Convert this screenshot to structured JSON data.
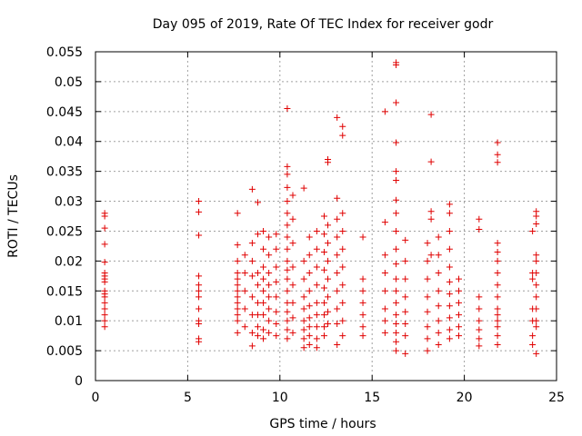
{
  "chart_data": {
    "type": "scatter",
    "title": "Day 095 of 2019, Rate Of TEC Index for receiver godr",
    "xlabel": "GPS time / hours",
    "ylabel": "ROTI / TECUs",
    "xlim": [
      0,
      25
    ],
    "ylim": [
      0,
      0.055
    ],
    "x_ticks": [
      0,
      5,
      10,
      15,
      20,
      25
    ],
    "x_tick_labels": [
      "0",
      "5",
      "10",
      "15",
      "20",
      "25"
    ],
    "y_ticks": [
      0,
      0.005,
      0.01,
      0.015,
      0.02,
      0.025,
      0.03,
      0.035,
      0.04,
      0.045,
      0.05,
      0.055
    ],
    "y_tick_labels": [
      "0",
      "0.005",
      "0.01",
      "0.015",
      "0.02",
      "0.025",
      "0.03",
      "0.035",
      "0.04",
      "0.045",
      "0.05",
      "0.055"
    ],
    "grid": true,
    "marker": "plus",
    "marker_color": "#e00000",
    "series": [
      {
        "name": "ROTI",
        "points": [
          [
            0.5,
            0.028
          ],
          [
            0.5,
            0.0275
          ],
          [
            0.5,
            0.0255
          ],
          [
            0.5,
            0.0228
          ],
          [
            0.5,
            0.0198
          ],
          [
            0.5,
            0.018
          ],
          [
            0.5,
            0.0175
          ],
          [
            0.5,
            0.017
          ],
          [
            0.5,
            0.0165
          ],
          [
            0.5,
            0.015
          ],
          [
            0.5,
            0.0145
          ],
          [
            0.5,
            0.014
          ],
          [
            0.5,
            0.013
          ],
          [
            0.5,
            0.012
          ],
          [
            0.5,
            0.011
          ],
          [
            0.5,
            0.01
          ],
          [
            0.5,
            0.009
          ],
          [
            5.6,
            0.03
          ],
          [
            5.6,
            0.0282
          ],
          [
            5.6,
            0.0243
          ],
          [
            5.6,
            0.0175
          ],
          [
            5.6,
            0.016
          ],
          [
            5.6,
            0.015
          ],
          [
            5.6,
            0.014
          ],
          [
            5.6,
            0.012
          ],
          [
            5.6,
            0.01
          ],
          [
            5.6,
            0.0095
          ],
          [
            5.6,
            0.007
          ],
          [
            5.6,
            0.0065
          ],
          [
            7.7,
            0.028
          ],
          [
            7.7,
            0.0227
          ],
          [
            7.7,
            0.02
          ],
          [
            7.7,
            0.018
          ],
          [
            7.7,
            0.017
          ],
          [
            7.7,
            0.016
          ],
          [
            7.7,
            0.015
          ],
          [
            7.7,
            0.014
          ],
          [
            7.7,
            0.013
          ],
          [
            7.7,
            0.012
          ],
          [
            7.7,
            0.011
          ],
          [
            7.7,
            0.01
          ],
          [
            7.7,
            0.008
          ],
          [
            8.1,
            0.021
          ],
          [
            8.1,
            0.018
          ],
          [
            8.1,
            0.015
          ],
          [
            8.1,
            0.012
          ],
          [
            8.1,
            0.009
          ],
          [
            8.5,
            0.032
          ],
          [
            8.5,
            0.023
          ],
          [
            8.5,
            0.02
          ],
          [
            8.5,
            0.0175
          ],
          [
            8.5,
            0.014
          ],
          [
            8.5,
            0.011
          ],
          [
            8.5,
            0.008
          ],
          [
            8.5,
            0.0058
          ],
          [
            8.8,
            0.0298
          ],
          [
            8.8,
            0.0245
          ],
          [
            8.8,
            0.018
          ],
          [
            8.8,
            0.016
          ],
          [
            8.8,
            0.013
          ],
          [
            8.8,
            0.011
          ],
          [
            8.8,
            0.009
          ],
          [
            8.8,
            0.0075
          ],
          [
            9.1,
            0.025
          ],
          [
            9.1,
            0.022
          ],
          [
            9.1,
            0.019
          ],
          [
            9.1,
            0.017
          ],
          [
            9.1,
            0.015
          ],
          [
            9.1,
            0.013
          ],
          [
            9.1,
            0.011
          ],
          [
            9.1,
            0.0085
          ],
          [
            9.1,
            0.007
          ],
          [
            9.4,
            0.024
          ],
          [
            9.4,
            0.021
          ],
          [
            9.4,
            0.018
          ],
          [
            9.4,
            0.016
          ],
          [
            9.4,
            0.014
          ],
          [
            9.4,
            0.012
          ],
          [
            9.4,
            0.01
          ],
          [
            9.4,
            0.008
          ],
          [
            9.8,
            0.0245
          ],
          [
            9.8,
            0.022
          ],
          [
            9.8,
            0.019
          ],
          [
            9.8,
            0.0165
          ],
          [
            9.8,
            0.014
          ],
          [
            9.8,
            0.0115
          ],
          [
            9.8,
            0.0095
          ],
          [
            9.8,
            0.0075
          ],
          [
            10.4,
            0.0455
          ],
          [
            10.4,
            0.0358
          ],
          [
            10.4,
            0.0345
          ],
          [
            10.4,
            0.0323
          ],
          [
            10.4,
            0.03
          ],
          [
            10.4,
            0.028
          ],
          [
            10.4,
            0.026
          ],
          [
            10.4,
            0.024
          ],
          [
            10.4,
            0.022
          ],
          [
            10.4,
            0.02
          ],
          [
            10.4,
            0.0185
          ],
          [
            10.4,
            0.017
          ],
          [
            10.4,
            0.015
          ],
          [
            10.4,
            0.013
          ],
          [
            10.4,
            0.0115
          ],
          [
            10.4,
            0.01
          ],
          [
            10.4,
            0.0085
          ],
          [
            10.4,
            0.007
          ],
          [
            10.7,
            0.031
          ],
          [
            10.7,
            0.027
          ],
          [
            10.7,
            0.023
          ],
          [
            10.7,
            0.019
          ],
          [
            10.7,
            0.016
          ],
          [
            10.7,
            0.013
          ],
          [
            10.7,
            0.0105
          ],
          [
            10.7,
            0.008
          ],
          [
            11.3,
            0.0322
          ],
          [
            11.3,
            0.02
          ],
          [
            11.3,
            0.017
          ],
          [
            11.3,
            0.014
          ],
          [
            11.3,
            0.012
          ],
          [
            11.3,
            0.01
          ],
          [
            11.3,
            0.0085
          ],
          [
            11.3,
            0.007
          ],
          [
            11.3,
            0.0055
          ],
          [
            11.6,
            0.024
          ],
          [
            11.6,
            0.021
          ],
          [
            11.6,
            0.018
          ],
          [
            11.6,
            0.015
          ],
          [
            11.6,
            0.0125
          ],
          [
            11.6,
            0.0105
          ],
          [
            11.6,
            0.009
          ],
          [
            11.6,
            0.0075
          ],
          [
            11.6,
            0.006
          ],
          [
            12.0,
            0.025
          ],
          [
            12.0,
            0.022
          ],
          [
            12.0,
            0.019
          ],
          [
            12.0,
            0.016
          ],
          [
            12.0,
            0.013
          ],
          [
            12.0,
            0.011
          ],
          [
            12.0,
            0.009
          ],
          [
            12.0,
            0.007
          ],
          [
            12.0,
            0.0055
          ],
          [
            12.4,
            0.0275
          ],
          [
            12.4,
            0.0245
          ],
          [
            12.4,
            0.0215
          ],
          [
            12.4,
            0.0185
          ],
          [
            12.4,
            0.0155
          ],
          [
            12.4,
            0.013
          ],
          [
            12.4,
            0.011
          ],
          [
            12.4,
            0.009
          ],
          [
            12.4,
            0.0075
          ],
          [
            12.6,
            0.037
          ],
          [
            12.6,
            0.0365
          ],
          [
            12.6,
            0.026
          ],
          [
            12.6,
            0.023
          ],
          [
            12.6,
            0.02
          ],
          [
            12.6,
            0.017
          ],
          [
            12.6,
            0.014
          ],
          [
            12.6,
            0.0115
          ],
          [
            12.6,
            0.0095
          ],
          [
            13.1,
            0.044
          ],
          [
            13.1,
            0.0305
          ],
          [
            13.1,
            0.027
          ],
          [
            13.1,
            0.024
          ],
          [
            13.1,
            0.021
          ],
          [
            13.1,
            0.018
          ],
          [
            13.1,
            0.015
          ],
          [
            13.1,
            0.012
          ],
          [
            13.1,
            0.0095
          ],
          [
            13.1,
            0.006
          ],
          [
            13.4,
            0.0425
          ],
          [
            13.4,
            0.041
          ],
          [
            13.4,
            0.028
          ],
          [
            13.4,
            0.025
          ],
          [
            13.4,
            0.022
          ],
          [
            13.4,
            0.019
          ],
          [
            13.4,
            0.016
          ],
          [
            13.4,
            0.013
          ],
          [
            13.4,
            0.01
          ],
          [
            13.4,
            0.0075
          ],
          [
            14.5,
            0.024
          ],
          [
            14.5,
            0.017
          ],
          [
            14.5,
            0.015
          ],
          [
            14.5,
            0.013
          ],
          [
            14.5,
            0.011
          ],
          [
            14.5,
            0.009
          ],
          [
            14.5,
            0.0075
          ],
          [
            15.7,
            0.045
          ],
          [
            15.7,
            0.0265
          ],
          [
            15.7,
            0.021
          ],
          [
            15.7,
            0.018
          ],
          [
            15.7,
            0.015
          ],
          [
            15.7,
            0.012
          ],
          [
            15.7,
            0.01
          ],
          [
            15.7,
            0.008
          ],
          [
            16.3,
            0.0532
          ],
          [
            16.3,
            0.0528
          ],
          [
            16.3,
            0.0465
          ],
          [
            16.3,
            0.0398
          ],
          [
            16.3,
            0.035
          ],
          [
            16.3,
            0.0335
          ],
          [
            16.3,
            0.0302
          ],
          [
            16.3,
            0.028
          ],
          [
            16.3,
            0.025
          ],
          [
            16.3,
            0.022
          ],
          [
            16.3,
            0.0195
          ],
          [
            16.3,
            0.017
          ],
          [
            16.3,
            0.015
          ],
          [
            16.3,
            0.013
          ],
          [
            16.3,
            0.011
          ],
          [
            16.3,
            0.0095
          ],
          [
            16.3,
            0.008
          ],
          [
            16.3,
            0.0065
          ],
          [
            16.3,
            0.005
          ],
          [
            16.8,
            0.0235
          ],
          [
            16.8,
            0.02
          ],
          [
            16.8,
            0.017
          ],
          [
            16.8,
            0.014
          ],
          [
            16.8,
            0.0115
          ],
          [
            16.8,
            0.0095
          ],
          [
            16.8,
            0.0075
          ],
          [
            16.8,
            0.0045
          ],
          [
            18.0,
            0.023
          ],
          [
            18.0,
            0.02
          ],
          [
            18.0,
            0.017
          ],
          [
            18.0,
            0.014
          ],
          [
            18.0,
            0.0115
          ],
          [
            18.0,
            0.009
          ],
          [
            18.0,
            0.007
          ],
          [
            18.0,
            0.005
          ],
          [
            18.2,
            0.0445
          ],
          [
            18.2,
            0.0366
          ],
          [
            18.2,
            0.0283
          ],
          [
            18.2,
            0.027
          ],
          [
            18.2,
            0.021
          ],
          [
            18.6,
            0.024
          ],
          [
            18.6,
            0.021
          ],
          [
            18.6,
            0.018
          ],
          [
            18.6,
            0.015
          ],
          [
            18.6,
            0.0125
          ],
          [
            18.6,
            0.01
          ],
          [
            18.6,
            0.008
          ],
          [
            18.6,
            0.006
          ],
          [
            19.2,
            0.0295
          ],
          [
            19.2,
            0.028
          ],
          [
            19.2,
            0.025
          ],
          [
            19.2,
            0.022
          ],
          [
            19.2,
            0.019
          ],
          [
            19.2,
            0.0165
          ],
          [
            19.2,
            0.0145
          ],
          [
            19.2,
            0.0125
          ],
          [
            19.2,
            0.0105
          ],
          [
            19.2,
            0.0085
          ],
          [
            19.2,
            0.007
          ],
          [
            19.7,
            0.017
          ],
          [
            19.7,
            0.015
          ],
          [
            19.7,
            0.013
          ],
          [
            19.7,
            0.011
          ],
          [
            19.7,
            0.009
          ],
          [
            19.7,
            0.0075
          ],
          [
            20.8,
            0.027
          ],
          [
            20.8,
            0.0253
          ],
          [
            20.8,
            0.014
          ],
          [
            20.8,
            0.012
          ],
          [
            20.8,
            0.01
          ],
          [
            20.8,
            0.0085
          ],
          [
            20.8,
            0.007
          ],
          [
            20.8,
            0.0058
          ],
          [
            21.8,
            0.0398
          ],
          [
            21.8,
            0.0378
          ],
          [
            21.8,
            0.0365
          ],
          [
            21.8,
            0.023
          ],
          [
            21.8,
            0.0215
          ],
          [
            21.8,
            0.02
          ],
          [
            21.8,
            0.018
          ],
          [
            21.8,
            0.016
          ],
          [
            21.8,
            0.014
          ],
          [
            21.8,
            0.012
          ],
          [
            21.8,
            0.011
          ],
          [
            21.8,
            0.01
          ],
          [
            21.8,
            0.009
          ],
          [
            21.8,
            0.0075
          ],
          [
            21.8,
            0.006
          ],
          [
            23.7,
            0.025
          ],
          [
            23.7,
            0.018
          ],
          [
            23.7,
            0.017
          ],
          [
            23.7,
            0.012
          ],
          [
            23.7,
            0.01
          ],
          [
            23.7,
            0.0075
          ],
          [
            23.7,
            0.006
          ],
          [
            23.9,
            0.0283
          ],
          [
            23.9,
            0.0275
          ],
          [
            23.9,
            0.0262
          ],
          [
            23.9,
            0.021
          ],
          [
            23.9,
            0.02
          ],
          [
            23.9,
            0.018
          ],
          [
            23.9,
            0.016
          ],
          [
            23.9,
            0.014
          ],
          [
            23.9,
            0.012
          ],
          [
            23.9,
            0.01
          ],
          [
            23.9,
            0.009
          ],
          [
            23.9,
            0.0045
          ]
        ]
      }
    ]
  }
}
